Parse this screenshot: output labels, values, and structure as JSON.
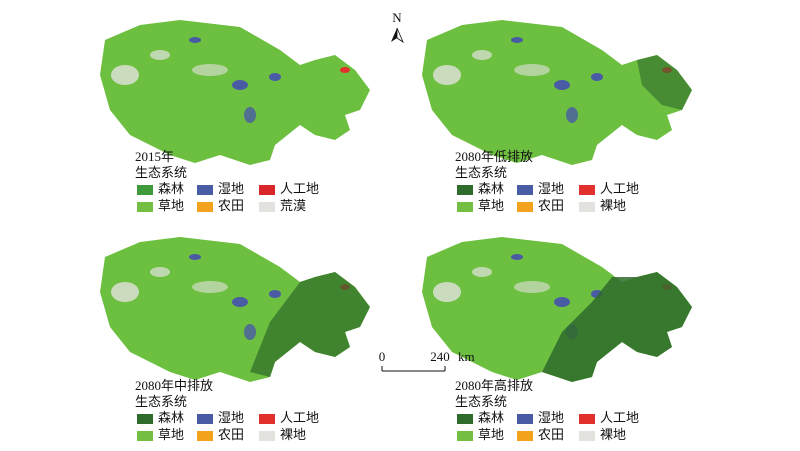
{
  "north_arrow": "N",
  "scale_bar": {
    "start": "0",
    "end": "240",
    "unit": "km"
  },
  "panels": [
    {
      "title": "2015年",
      "legend_title": "生态系统",
      "legend": [
        {
          "label": "森林",
          "color": "#3f9b3a"
        },
        {
          "label": "湿地",
          "color": "#4a5ba6"
        },
        {
          "label": "人工地",
          "color": "#d9262b"
        },
        {
          "label": "草地",
          "color": "#72bf44"
        },
        {
          "label": "农田",
          "color": "#f3a31b"
        },
        {
          "label": "荒漠",
          "color": "#e4e2df"
        }
      ]
    },
    {
      "title": "2080年低排放",
      "legend_title": "生态系统",
      "legend": [
        {
          "label": "森林",
          "color": "#2f6b2b"
        },
        {
          "label": "湿地",
          "color": "#4a5ba6"
        },
        {
          "label": "人工地",
          "color": "#e2302f"
        },
        {
          "label": "草地",
          "color": "#72bf44"
        },
        {
          "label": "农田",
          "color": "#f3a31b"
        },
        {
          "label": "裸地",
          "color": "#e4e2df"
        }
      ]
    },
    {
      "title": "2080年中排放",
      "legend_title": "生态系统",
      "legend": [
        {
          "label": "森林",
          "color": "#2f6b2b"
        },
        {
          "label": "湿地",
          "color": "#4a5ba6"
        },
        {
          "label": "人工地",
          "color": "#e2302f"
        },
        {
          "label": "草地",
          "color": "#72bf44"
        },
        {
          "label": "农田",
          "color": "#f3a31b"
        },
        {
          "label": "裸地",
          "color": "#e4e2df"
        }
      ]
    },
    {
      "title": "2080年高排放",
      "legend_title": "生态系统",
      "legend": [
        {
          "label": "森林",
          "color": "#2f6b2b"
        },
        {
          "label": "湿地",
          "color": "#4a5ba6"
        },
        {
          "label": "人工地",
          "color": "#e2302f"
        },
        {
          "label": "草地",
          "color": "#72bf44"
        },
        {
          "label": "农田",
          "color": "#f3a31b"
        },
        {
          "label": "裸地",
          "color": "#e4e2df"
        }
      ]
    }
  ]
}
